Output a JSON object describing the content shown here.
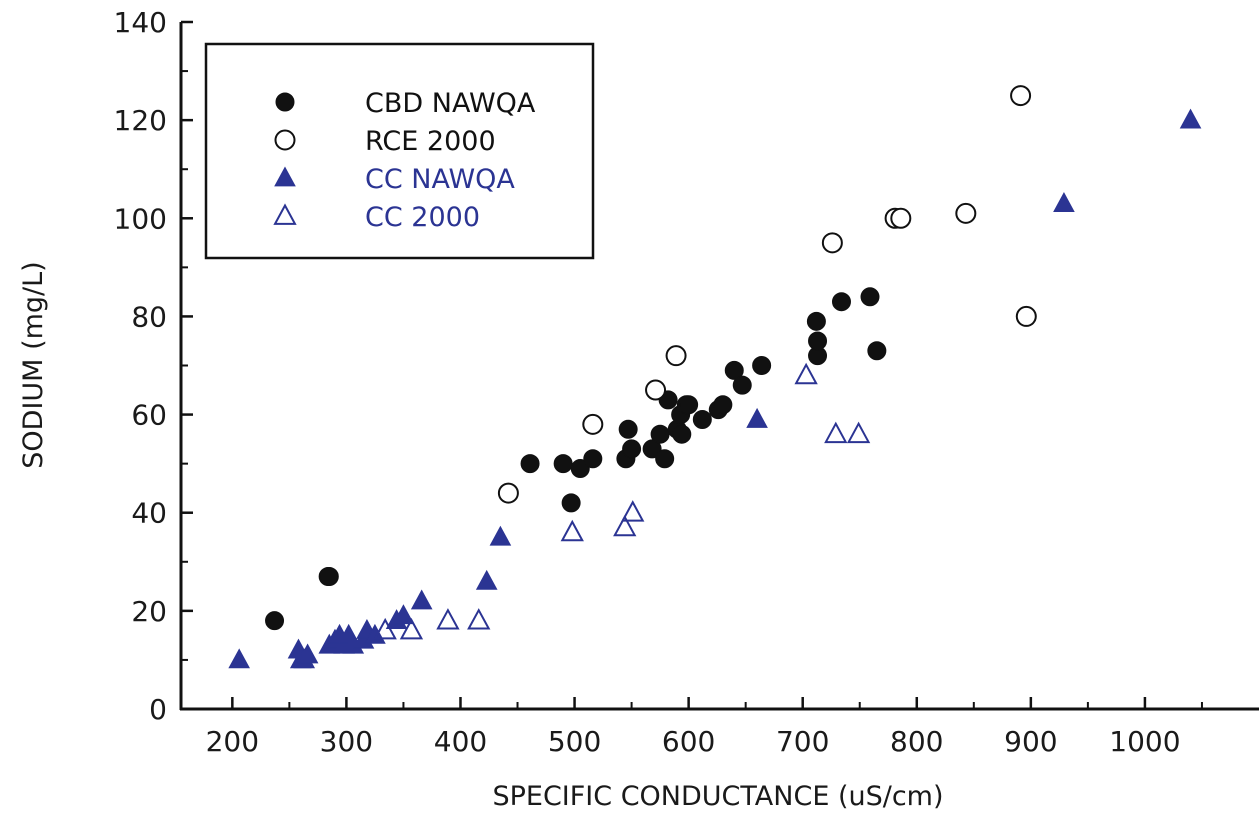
{
  "chart_data": {
    "type": "scatter",
    "title": "",
    "xlabel": "SPECIFIC CONDUCTANCE (uS/cm)",
    "ylabel": "SODIUM (mg/L)",
    "xlim": [
      155,
      1100
    ],
    "ylim": [
      0,
      140
    ],
    "xticks": [
      "200",
      "300",
      "400",
      "500",
      "600",
      "700",
      "800",
      "900",
      "1000"
    ],
    "yticks": [
      "0",
      "20",
      "40",
      "60",
      "80",
      "100",
      "120",
      "140"
    ],
    "grid": false,
    "legend_position": "top-left",
    "series": [
      {
        "name": "CBD NAWQA",
        "marker": "filled-circle",
        "color": "#111111",
        "points": [
          [
            237,
            18
          ],
          [
            284,
            27
          ],
          [
            285,
            27
          ],
          [
            461,
            50
          ],
          [
            490,
            50
          ],
          [
            497,
            42
          ],
          [
            505,
            49
          ],
          [
            516,
            51
          ],
          [
            545,
            51
          ],
          [
            547,
            57
          ],
          [
            550,
            53
          ],
          [
            568,
            53
          ],
          [
            575,
            56
          ],
          [
            579,
            51
          ],
          [
            582,
            63
          ],
          [
            590,
            57
          ],
          [
            593,
            60
          ],
          [
            594,
            56
          ],
          [
            598,
            62
          ],
          [
            600,
            62
          ],
          [
            612,
            59
          ],
          [
            626,
            61
          ],
          [
            630,
            62
          ],
          [
            640,
            69
          ],
          [
            647,
            66
          ],
          [
            664,
            70
          ],
          [
            712,
            79
          ],
          [
            713,
            72
          ],
          [
            713,
            75
          ],
          [
            734,
            83
          ],
          [
            759,
            84
          ],
          [
            765,
            73
          ]
        ]
      },
      {
        "name": "RCE 2000",
        "marker": "open-circle",
        "color": "#111111",
        "points": [
          [
            442,
            44
          ],
          [
            516,
            58
          ],
          [
            571,
            65
          ],
          [
            589,
            72
          ],
          [
            726,
            95
          ],
          [
            781,
            100
          ],
          [
            786,
            100
          ],
          [
            843,
            101
          ],
          [
            891,
            125
          ],
          [
            896,
            80
          ]
        ]
      },
      {
        "name": "CC NAWQA",
        "marker": "filled-triangle",
        "color": "#2b3493",
        "points": [
          [
            206,
            10
          ],
          [
            258,
            12
          ],
          [
            260,
            10
          ],
          [
            263,
            10
          ],
          [
            266,
            11
          ],
          [
            285,
            13
          ],
          [
            290,
            14
          ],
          [
            294,
            15
          ],
          [
            298,
            13
          ],
          [
            302,
            15
          ],
          [
            306,
            13
          ],
          [
            315,
            14
          ],
          [
            318,
            16
          ],
          [
            325,
            15
          ],
          [
            344,
            18
          ],
          [
            350,
            19
          ],
          [
            366,
            22
          ],
          [
            423,
            26
          ],
          [
            435,
            35
          ],
          [
            660,
            59
          ],
          [
            929,
            103
          ],
          [
            1040,
            120
          ]
        ]
      },
      {
        "name": "CC 2000",
        "marker": "open-triangle",
        "color": "#2b3493",
        "points": [
          [
            334,
            16
          ],
          [
            357,
            16
          ],
          [
            389,
            18
          ],
          [
            416,
            18
          ],
          [
            498,
            36
          ],
          [
            544,
            37
          ],
          [
            551,
            40
          ],
          [
            703,
            68
          ],
          [
            729,
            56
          ],
          [
            749,
            56
          ]
        ]
      }
    ]
  }
}
